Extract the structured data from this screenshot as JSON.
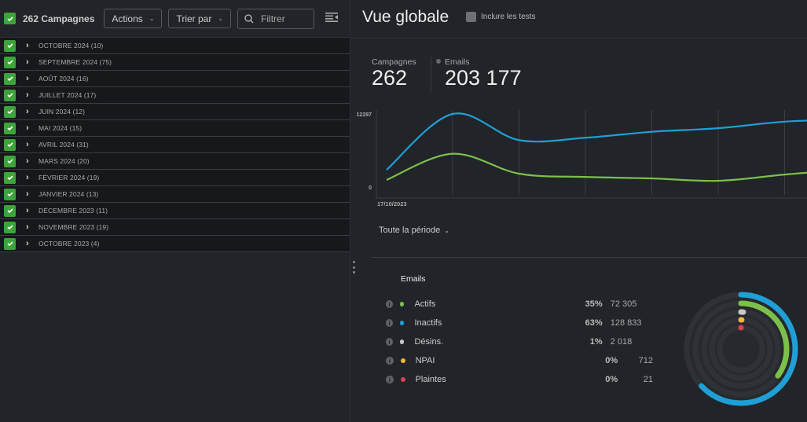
{
  "sidebar": {
    "title": "262 Campagnes",
    "actions_label": "Actions",
    "sort_label": "Trier par",
    "filter_placeholder": "Filtrer",
    "groups": [
      {
        "label": "OCTOBRE 2024 (10)"
      },
      {
        "label": "SEPTEMBRE 2024 (75)"
      },
      {
        "label": "AOÛT 2024 (16)"
      },
      {
        "label": "JUILLET 2024 (17)"
      },
      {
        "label": "JUIN 2024 (12)"
      },
      {
        "label": "MAI 2024 (15)"
      },
      {
        "label": "AVRIL 2024 (31)"
      },
      {
        "label": "MARS 2024 (20)"
      },
      {
        "label": "FÉVRIER 2024 (19)"
      },
      {
        "label": "JANVIER 2024 (13)"
      },
      {
        "label": "DÉCEMBRE 2023 (11)"
      },
      {
        "label": "NOVEMBRE 2023 (19)"
      },
      {
        "label": "OCTOBRE 2023 (4)"
      }
    ]
  },
  "main": {
    "title": "Vue globale",
    "include_tests": "Inclure les tests",
    "stats": {
      "campaigns_label": "Campagnes",
      "campaigns_value": "262",
      "emails_label": "Emails",
      "emails_value": "203 177"
    },
    "period": "Toute la période",
    "emails_title": "Emails",
    "breakdown": [
      {
        "name": "Actifs",
        "pct": "35%",
        "count": "72 305",
        "color": "#7cc04b",
        "fraction": 0.35
      },
      {
        "name": "Inactifs",
        "pct": "63%",
        "count": "128 833",
        "color": "#1f9fd6",
        "fraction": 0.63
      },
      {
        "name": "Désins.",
        "pct": "1%",
        "count": "2 018",
        "color": "#c8c8c8",
        "fraction": 0.01
      },
      {
        "name": "NPAI",
        "pct": "0%",
        "count": "712",
        "color": "#f5b53d",
        "fraction": 0.004
      },
      {
        "name": "Plaintes",
        "pct": "0%",
        "count": "21",
        "color": "#e04050",
        "fraction": 0.0001
      }
    ]
  },
  "chart_data": {
    "type": "line",
    "y_ticks": [
      "0",
      "12297"
    ],
    "ylim": [
      0,
      12297
    ],
    "x_start_label": "17/10/2023",
    "series": [
      {
        "name": "Inactifs",
        "color": "#1f9fd6",
        "values": [
          2900,
          12297,
          7900,
          8300,
          9300,
          9900,
          11000,
          11400
        ]
      },
      {
        "name": "Actifs",
        "color": "#7cc04b",
        "values": [
          1200,
          5600,
          2250,
          1700,
          1450,
          1050,
          2100,
          3000
        ]
      }
    ]
  }
}
